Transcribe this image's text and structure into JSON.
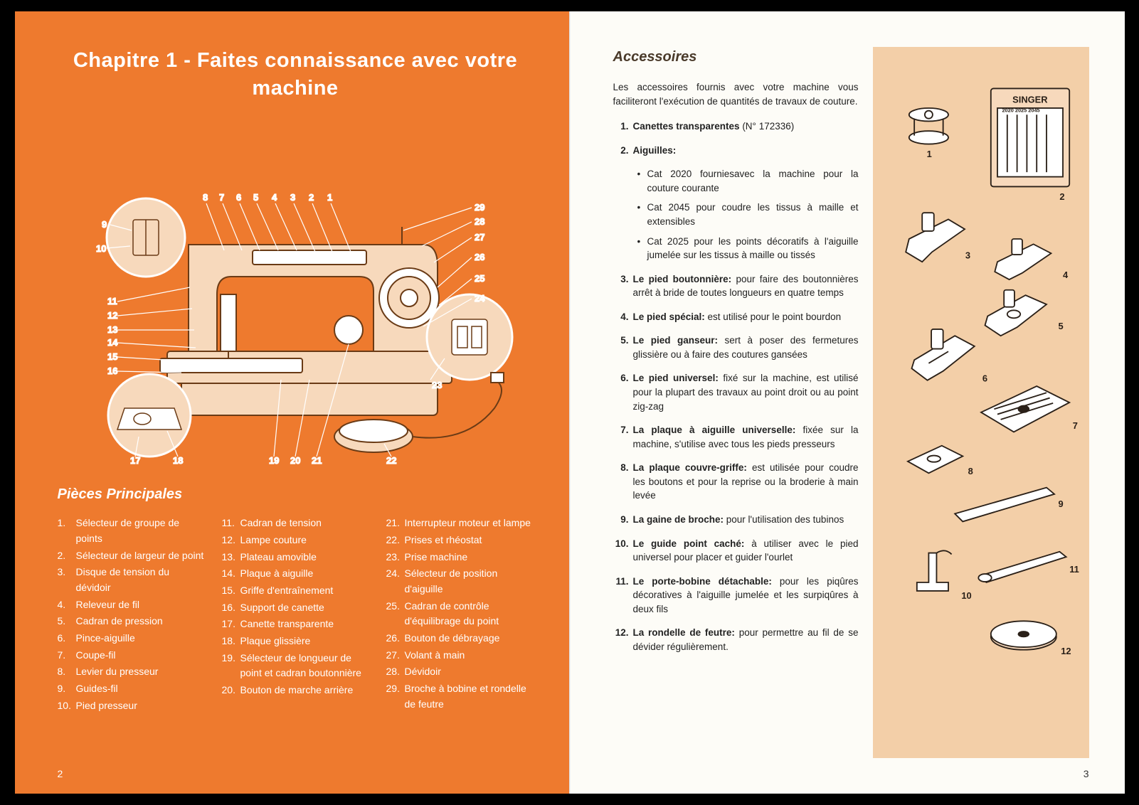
{
  "left": {
    "chapter_title_line1": "Chapitre 1 - Faites connaissance avec votre",
    "chapter_title_line2": "machine",
    "section_heading": "Pièces Principales",
    "page_number": "2",
    "diagram": {
      "callout_numbers": [
        "1",
        "2",
        "3",
        "4",
        "5",
        "6",
        "7",
        "8",
        "9",
        "10",
        "11",
        "12",
        "13",
        "14",
        "15",
        "16",
        "17",
        "18",
        "19",
        "20",
        "21",
        "22",
        "23",
        "24",
        "25",
        "26",
        "27",
        "28",
        "29"
      ],
      "line_color": "#ffffff",
      "machine_fill": "#f7d9bc",
      "machine_stroke": "#6a3b16"
    },
    "parts_col1": [
      {
        "n": "1.",
        "t": "Sélecteur de groupe de points"
      },
      {
        "n": "2.",
        "t": "Sélecteur de largeur de point"
      },
      {
        "n": "3.",
        "t": "Disque de tension du dévidoir"
      },
      {
        "n": "4.",
        "t": "Releveur de fil"
      },
      {
        "n": "5.",
        "t": "Cadran de pression"
      },
      {
        "n": "6.",
        "t": "Pince-aiguille"
      },
      {
        "n": "7.",
        "t": "Coupe-fil"
      },
      {
        "n": "8.",
        "t": "Levier du presseur"
      },
      {
        "n": "9.",
        "t": "Guides-fil"
      },
      {
        "n": "10.",
        "t": "Pied presseur"
      }
    ],
    "parts_col2": [
      {
        "n": "11.",
        "t": "Cadran de tension"
      },
      {
        "n": "12.",
        "t": "Lampe couture"
      },
      {
        "n": "13.",
        "t": "Plateau amovible"
      },
      {
        "n": "14.",
        "t": "Plaque à aiguille"
      },
      {
        "n": "15.",
        "t": "Griffe d'entraînement"
      },
      {
        "n": "16.",
        "t": "Support de canette"
      },
      {
        "n": "17.",
        "t": "Canette transparente"
      },
      {
        "n": "18.",
        "t": "Plaque glissière"
      },
      {
        "n": "19.",
        "t": "Sélecteur de longueur de point et cadran boutonnière"
      },
      {
        "n": "20.",
        "t": "Bouton de marche arrière"
      }
    ],
    "parts_col3": [
      {
        "n": "21.",
        "t": "Interrupteur moteur et lampe"
      },
      {
        "n": "22.",
        "t": "Prises et rhéostat"
      },
      {
        "n": "23.",
        "t": "Prise machine"
      },
      {
        "n": "24.",
        "t": "Sélecteur de position d'aiguille"
      },
      {
        "n": "25.",
        "t": "Cadran de contrôle d'équilibrage du point"
      },
      {
        "n": "26.",
        "t": "Bouton de débrayage"
      },
      {
        "n": "27.",
        "t": "Volant à main"
      },
      {
        "n": "28.",
        "t": "Dévidoir"
      },
      {
        "n": "29.",
        "t": "Broche à bobine et rondelle de feutre"
      }
    ]
  },
  "right": {
    "section_heading": "Accessoires",
    "intro": "Les accessoires fournis avec votre machine vous faciliteront l'exécution de quantités de travaux de couture.",
    "page_number": "3",
    "items": [
      {
        "n": "1.",
        "lead": "Canettes transparentes",
        "rest": " (N° 172336)"
      },
      {
        "n": "2.",
        "lead": "Aiguilles:",
        "rest": ""
      }
    ],
    "needles_sub": [
      "Cat 2020 fourniesavec la machine pour la couture courante",
      "Cat 2045 pour coudre les tissus à maille et extensibles",
      "Cat 2025 pour les points décoratifs à l'aiguille jumelée sur les tissus à maille ou tissés"
    ],
    "items_rest": [
      {
        "n": "3.",
        "lead": "Le pied boutonnière:",
        "rest": " pour faire des boutonnières arrêt à bride de toutes longueurs en quatre temps"
      },
      {
        "n": "4.",
        "lead": "Le pied spécial:",
        "rest": " est utilisé pour le point bourdon"
      },
      {
        "n": "5.",
        "lead": "Le pied ganseur:",
        "rest": " sert à poser des fermetures glissière ou à faire des coutures gansées"
      },
      {
        "n": "6.",
        "lead": "Le pied universel:",
        "rest": " fixé sur la machine, est utilisé pour la plupart des travaux au point droit ou au point zig-zag"
      },
      {
        "n": "7.",
        "lead": "La plaque à aiguille universelle:",
        "rest": " fixée sur la machine, s'utilise avec tous les pieds presseurs"
      },
      {
        "n": "8.",
        "lead": "La plaque couvre-griffe:",
        "rest": " est utilisée pour coudre les boutons et pour la reprise ou la broderie à main levée"
      },
      {
        "n": "9.",
        "lead": "La gaine de broche:",
        "rest": " pour l'utilisation des tubinos"
      },
      {
        "n": "10.",
        "lead": "Le guide point caché:",
        "rest": " à utiliser avec le pied universel pour placer et guider l'ourlet"
      },
      {
        "n": "11.",
        "lead": "Le porte-bobine détachable:",
        "rest": " pour les piqûres décoratives à l'aiguille jumelée et les surpiqûres à deux fils"
      },
      {
        "n": "12.",
        "lead": "La rondelle de feutre:",
        "rest": " pour permettre au fil de se dévider régulièrement."
      }
    ],
    "illus": {
      "bg": "#f3cfa8",
      "stroke": "#2a2018",
      "fill": "#ffffff",
      "singer_label": "SINGER",
      "singer_sub": "2020  2025  2045",
      "labels": [
        "1",
        "2",
        "3",
        "4",
        "5",
        "6",
        "7",
        "8",
        "9",
        "10",
        "11",
        "12"
      ]
    }
  },
  "colors": {
    "orange": "#ee7a2e",
    "cream": "#fdfcf7",
    "peach": "#f3cfa8",
    "white": "#ffffff",
    "ink": "#2a2018"
  }
}
